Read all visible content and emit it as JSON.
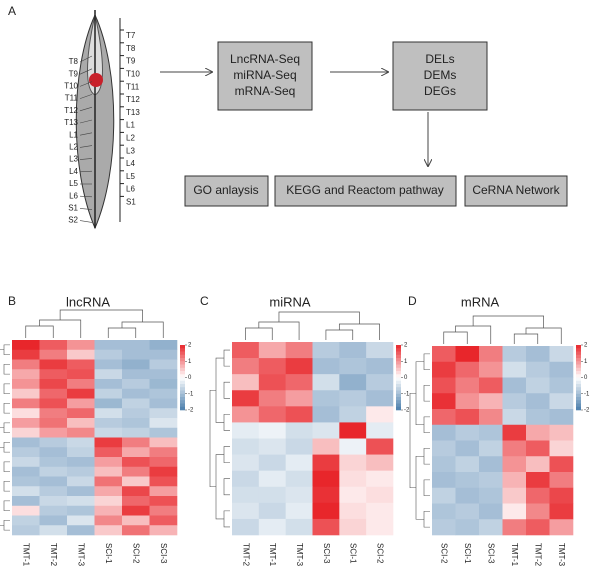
{
  "panels": [
    "A",
    "B",
    "C",
    "D"
  ],
  "diagram": {
    "left_labels": [
      "T8",
      "T9",
      "T10",
      "T11",
      "T12",
      "T13",
      "L1",
      "L2",
      "L3",
      "L4",
      "L5",
      "L6",
      "S1",
      "S2"
    ],
    "right_labels": [
      "T7",
      "T8",
      "T9",
      "T10",
      "T11",
      "T12",
      "T13",
      "L1",
      "L2",
      "L3",
      "L4",
      "L5",
      "L6",
      "S1"
    ],
    "seq_box": [
      "LncRNA-Seq",
      "miRNA-Seq",
      "mRNA-Seq"
    ],
    "deg_box": [
      "DELs",
      "DEMs",
      "DEGs"
    ],
    "outputs": [
      "GO anlaysis",
      "KEGG and Reactom pathway",
      "CeRNA Network"
    ]
  },
  "heatmaps": [
    {
      "title": "lncRNA",
      "columns": [
        "TMT-1",
        "TMT-2",
        "TMT-3",
        "SCI-1",
        "SCI-2",
        "SCI-3"
      ],
      "colorbar_ticks": [
        2,
        1,
        0,
        -1,
        -2
      ],
      "values": [
        [
          2,
          1.5,
          1,
          -1,
          -1,
          -1.2
        ],
        [
          1.8,
          1.2,
          0.5,
          -0.8,
          -1,
          -1
        ],
        [
          1.2,
          1.8,
          1.5,
          -1,
          -1.2,
          -0.8
        ],
        [
          0.8,
          1.5,
          1.6,
          -0.6,
          -1,
          -1
        ],
        [
          1,
          1.7,
          1.2,
          -1,
          -0.8,
          -1.1
        ],
        [
          0.5,
          1.4,
          1.8,
          -0.7,
          -1,
          -0.9
        ],
        [
          1.2,
          1.6,
          0.9,
          -1.1,
          -0.7,
          -1
        ],
        [
          0.3,
          1.2,
          1.4,
          -0.5,
          -0.8,
          -0.6
        ],
        [
          0.9,
          1.3,
          0.6,
          -0.8,
          -0.9,
          -0.4
        ],
        [
          0.4,
          0.9,
          1.1,
          -0.6,
          -0.7,
          -0.9
        ],
        [
          -1,
          -0.8,
          -0.6,
          1.8,
          1.2,
          0.6
        ],
        [
          -0.8,
          -1,
          -0.7,
          1.5,
          0.8,
          1.2
        ],
        [
          -0.6,
          -0.9,
          -1,
          0.9,
          1.6,
          1.4
        ],
        [
          -1,
          -0.7,
          -0.8,
          0.6,
          1.2,
          1.8
        ],
        [
          -0.9,
          -1,
          -0.6,
          1.3,
          0.5,
          1.6
        ],
        [
          -0.5,
          -0.8,
          -1,
          0.8,
          1.7,
          0.9
        ],
        [
          -1,
          -0.6,
          -0.5,
          0.4,
          1.4,
          1.6
        ],
        [
          0.3,
          -0.8,
          -0.9,
          0.7,
          1.8,
          1.2
        ],
        [
          -0.7,
          -1,
          -0.4,
          1.1,
          0.6,
          1.5
        ],
        [
          -0.8,
          -0.5,
          -1,
          0.5,
          1.3,
          0.7
        ]
      ]
    },
    {
      "title": "miRNA",
      "columns": [
        "TMT-2",
        "TMT-1",
        "TMT-3",
        "SCI-3",
        "SCI-1",
        "SCI-2"
      ],
      "colorbar_ticks": [
        2,
        1,
        0,
        -1,
        -2
      ],
      "values": [
        [
          1.5,
          0.8,
          1.2,
          -0.8,
          -1,
          -0.6
        ],
        [
          1.2,
          1.5,
          1.8,
          -1,
          -0.9,
          -1
        ],
        [
          0.6,
          1.6,
          1.4,
          -0.5,
          -1.2,
          -0.8
        ],
        [
          1.8,
          1.2,
          0.9,
          -0.9,
          -0.8,
          -1
        ],
        [
          1,
          1.4,
          1.6,
          -1,
          -0.7,
          0.2
        ],
        [
          -0.3,
          -0.2,
          -0.5,
          -0.4,
          2,
          -0.3
        ],
        [
          -0.5,
          -0.4,
          -0.6,
          0.6,
          -0.2,
          1.6
        ],
        [
          -0.4,
          -0.6,
          -0.3,
          1.8,
          0.4,
          0.6
        ],
        [
          -0.6,
          -0.3,
          -0.5,
          2,
          0.3,
          0.2
        ],
        [
          -0.5,
          -0.5,
          -0.4,
          1.9,
          0.2,
          0.3
        ],
        [
          -0.4,
          -0.6,
          -0.3,
          2,
          0.3,
          0.2
        ],
        [
          -0.6,
          -0.3,
          -0.5,
          1.6,
          0.4,
          0.2
        ]
      ]
    },
    {
      "title": "mRNA",
      "columns": [
        "SCI-2",
        "SCI-1",
        "SCI-3",
        "TMT-1",
        "TMT-2",
        "TMT-3"
      ],
      "colorbar_ticks": [
        2,
        1,
        0,
        -1,
        -2
      ],
      "values": [
        [
          1.5,
          2,
          1.2,
          -0.8,
          -1,
          -0.6
        ],
        [
          1.8,
          1.4,
          1,
          -0.5,
          -0.8,
          -1
        ],
        [
          1.6,
          1.2,
          1.5,
          -1,
          -0.7,
          -0.9
        ],
        [
          1.9,
          1,
          0.7,
          -0.8,
          -1,
          -0.6
        ],
        [
          1.4,
          1.6,
          1.1,
          -0.6,
          -0.9,
          -1
        ],
        [
          -1,
          -0.8,
          -0.9,
          1.8,
          0.8,
          0.6
        ],
        [
          -0.8,
          -1,
          -0.7,
          1.2,
          1.5,
          0.4
        ],
        [
          -0.9,
          -0.7,
          -1,
          1,
          0.6,
          1.6
        ],
        [
          -1,
          -0.9,
          -0.8,
          0.7,
          1.8,
          1.2
        ],
        [
          -0.7,
          -1,
          -0.9,
          0.5,
          1.4,
          1.7
        ],
        [
          -0.9,
          -0.8,
          -1,
          0.2,
          1.1,
          1.8
        ],
        [
          -0.8,
          -0.9,
          -0.7,
          1.2,
          1.5,
          0.9
        ]
      ]
    }
  ]
}
